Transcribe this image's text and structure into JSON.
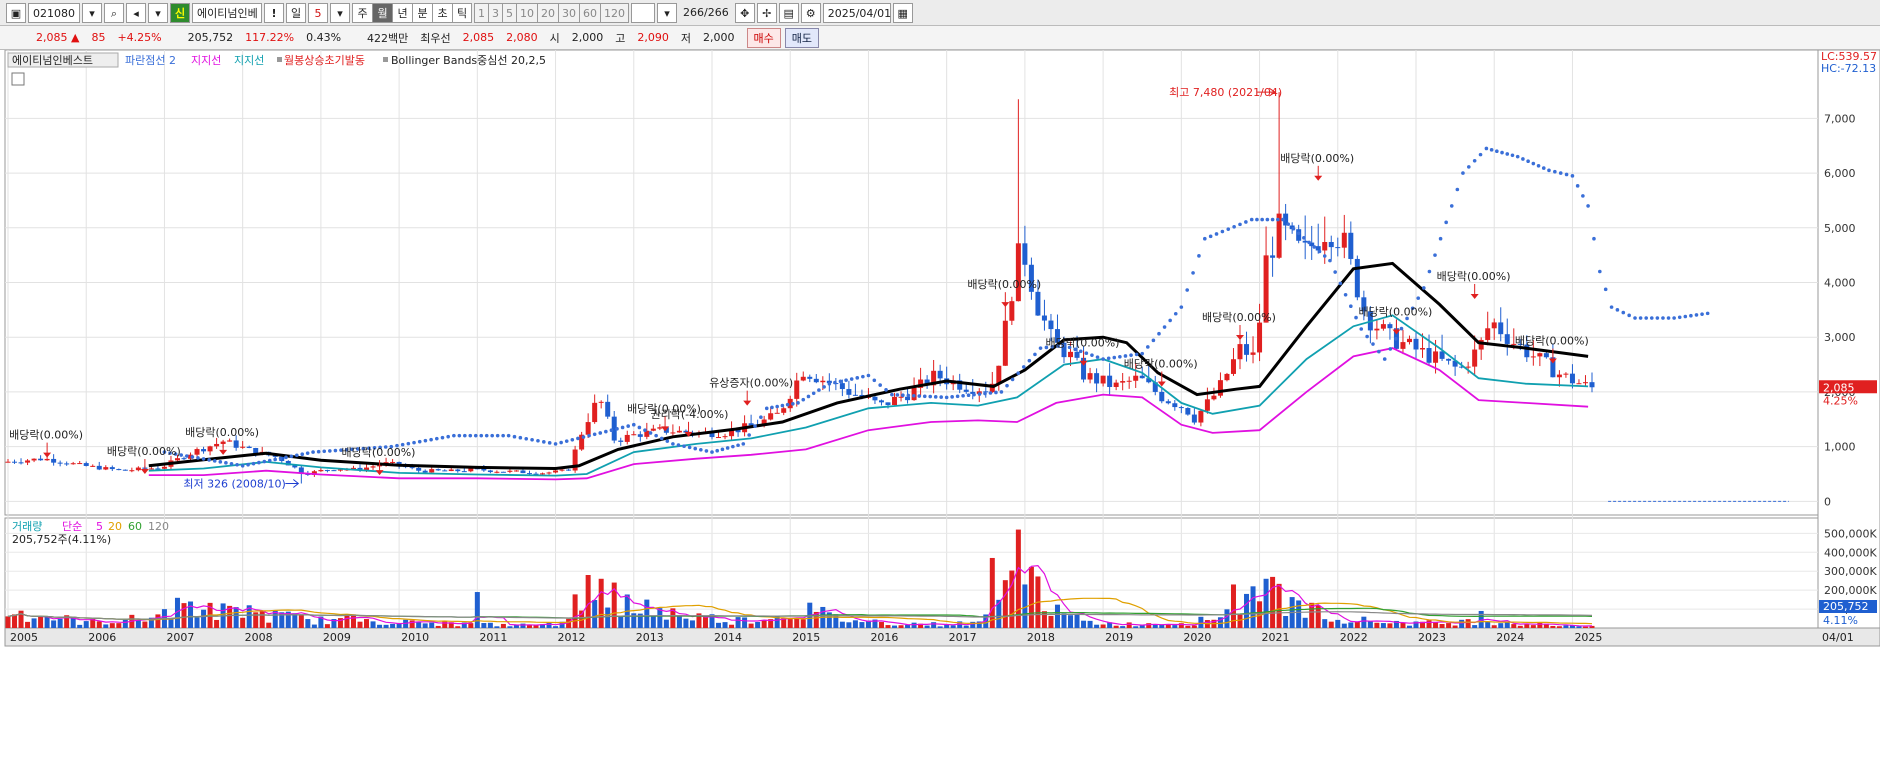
{
  "toolbar": {
    "code": "021080",
    "name_badge": "신",
    "name": "에이티넘인베",
    "alert": "!",
    "period_primary": "일",
    "period_count": "5",
    "periods": [
      "주",
      "월",
      "년",
      "분",
      "초",
      "틱"
    ],
    "active_period": "월",
    "intervals": [
      "1",
      "3",
      "5",
      "10",
      "20",
      "30",
      "60",
      "120"
    ],
    "candle_count": "266",
    "candle_total": "/266",
    "date": "2025/04/01"
  },
  "quote": {
    "price": "2,085",
    "change": "85",
    "change_pct": "+4.25%",
    "volume": "205,752",
    "vol_ratio": "117.22%",
    "turnover": "0.43%",
    "amount": "422백만",
    "best_bid_label": "최우선",
    "best_ask": "2,085",
    "best_bid": "2,080",
    "open_label": "시",
    "open": "2,000",
    "high_label": "고",
    "high": "2,090",
    "low_label": "저",
    "low": "2,000",
    "buy_label": "매수",
    "sell_label": "매도"
  },
  "chart_data": {
    "type": "candlestick",
    "legend": {
      "stock": "에이티넘인베스트",
      "psar": "파란점선 2",
      "support1": "지지선",
      "support2": "지지선",
      "signal": "월봉상승초기발동",
      "bb": "Bollinger Bands중심선 20,2,5"
    },
    "legend_colors": {
      "psar": "#3a6fd8",
      "support1": "#e010e0",
      "support2": "#10a0b0",
      "signal": "#e02020"
    },
    "corner_lc": "LC:539.57",
    "corner_hc": "HC:-72.13",
    "y_ticks": [
      "7,000",
      "6,000",
      "5,000",
      "4,000",
      "3,000",
      "2,000",
      "1,000",
      "0"
    ],
    "y_values": [
      7000,
      6000,
      5000,
      4000,
      3000,
      2000,
      1000,
      0
    ],
    "ylim": [
      -250,
      8250
    ],
    "x_labels": [
      "2005",
      "2006",
      "2007",
      "2008",
      "2009",
      "2010",
      "2011",
      "2012",
      "2013",
      "2014",
      "2015",
      "2016",
      "2017",
      "2018",
      "2019",
      "2020",
      "2021",
      "2022",
      "2023",
      "2024",
      "2025"
    ],
    "last_date": "04/01",
    "price_tag": "2,085",
    "pct_tag": "4.25%",
    "current_price": 2085,
    "high_note": "최고 7,480 (2021/04)",
    "high_value": 7480,
    "low_note": "최저 326 (2008/10)",
    "low_value": 326,
    "annotations": [
      {
        "text": "배당락(0.00%)",
        "year": 2005.5,
        "y": 1000
      },
      {
        "text": "배당락(0.00%)",
        "year": 2006.75,
        "y": 700
      },
      {
        "text": "배당락(0.00%)",
        "year": 2007.75,
        "y": 1050
      },
      {
        "text": "배당락(0.00%)",
        "year": 2009.75,
        "y": 680
      },
      {
        "text": "배당락(0.00%)",
        "year": 2013.4,
        "y": 1480
      },
      {
        "text": "권리락(-4.00%)",
        "year": 2013.7,
        "y": 1380
      },
      {
        "text": "유상증자(0.00%)",
        "year": 2014.45,
        "y": 1950
      },
      {
        "text": "배당락(0.00%)",
        "year": 2017.75,
        "y": 3750
      },
      {
        "text": "배당락(0.00%)",
        "year": 2018.75,
        "y": 2680
      },
      {
        "text": "배당락(0.00%)",
        "year": 2019.75,
        "y": 2300
      },
      {
        "text": "배당락(0.00%)",
        "year": 2020.75,
        "y": 3150
      },
      {
        "text": "배당락(0.00%)",
        "year": 2021.75,
        "y": 6060
      },
      {
        "text": "배당락(0.00%)",
        "year": 2022.75,
        "y": 3250
      },
      {
        "text": "배당락(0.00%)",
        "year": 2023.75,
        "y": 3900
      },
      {
        "text": "배당락(0.00%)",
        "year": 2024.75,
        "y": 2720
      }
    ],
    "anchors": [
      [
        2005.0,
        720
      ],
      [
        2005.5,
        780
      ],
      [
        2006.0,
        650
      ],
      [
        2006.5,
        560
      ],
      [
        2007.0,
        620
      ],
      [
        2007.4,
        900
      ],
      [
        2007.8,
        1100
      ],
      [
        2008.2,
        900
      ],
      [
        2008.5,
        800
      ],
      [
        2008.83,
        500
      ],
      [
        2009.2,
        600
      ],
      [
        2009.5,
        580
      ],
      [
        2009.9,
        700
      ],
      [
        2010.3,
        560
      ],
      [
        2010.7,
        550
      ],
      [
        2011.0,
        580
      ],
      [
        2011.5,
        540
      ],
      [
        2011.9,
        520
      ],
      [
        2012.2,
        560
      ],
      [
        2012.4,
        1350
      ],
      [
        2012.6,
        1900
      ],
      [
        2012.8,
        1100
      ],
      [
        2013.0,
        1200
      ],
      [
        2013.4,
        1300
      ],
      [
        2013.8,
        1250
      ],
      [
        2014.2,
        1250
      ],
      [
        2014.6,
        1400
      ],
      [
        2014.9,
        1600
      ],
      [
        2015.2,
        2400
      ],
      [
        2015.5,
        2200
      ],
      [
        2015.8,
        2000
      ],
      [
        2016.2,
        1750
      ],
      [
        2016.6,
        2000
      ],
      [
        2016.9,
        2300
      ],
      [
        2017.3,
        2100
      ],
      [
        2017.6,
        2050
      ],
      [
        2017.75,
        2800
      ],
      [
        2017.9,
        4100
      ],
      [
        2018.0,
        4700
      ],
      [
        2018.2,
        3600
      ],
      [
        2018.4,
        2900
      ],
      [
        2018.6,
        2700
      ],
      [
        2018.8,
        2300
      ],
      [
        2019.2,
        2100
      ],
      [
        2019.5,
        2250
      ],
      [
        2019.8,
        1900
      ],
      [
        2020.1,
        1700
      ],
      [
        2020.2,
        1500
      ],
      [
        2020.5,
        2000
      ],
      [
        2020.8,
        2800
      ],
      [
        2021.0,
        2600
      ],
      [
        2021.1,
        4300
      ],
      [
        2021.3,
        5000
      ],
      [
        2021.6,
        4500
      ],
      [
        2021.9,
        5000
      ],
      [
        2022.1,
        4800
      ],
      [
        2022.4,
        3400
      ],
      [
        2022.7,
        3000
      ],
      [
        2023.0,
        2800
      ],
      [
        2023.3,
        2600
      ],
      [
        2023.6,
        2400
      ],
      [
        2023.85,
        2800
      ],
      [
        2024.0,
        3300
      ],
      [
        2024.3,
        2900
      ],
      [
        2024.6,
        2600
      ],
      [
        2024.9,
        2300
      ],
      [
        2025.25,
        2085
      ]
    ],
    "bb_mid": [
      [
        2006.8,
        650
      ],
      [
        2007.5,
        760
      ],
      [
        2008.3,
        880
      ],
      [
        2009.0,
        750
      ],
      [
        2010.0,
        660
      ],
      [
        2011.0,
        620
      ],
      [
        2012.0,
        600
      ],
      [
        2012.3,
        650
      ],
      [
        2012.8,
        950
      ],
      [
        2013.5,
        1180
      ],
      [
        2014.3,
        1320
      ],
      [
        2014.9,
        1450
      ],
      [
        2015.6,
        1800
      ],
      [
        2016.4,
        2050
      ],
      [
        2017.0,
        2200
      ],
      [
        2017.6,
        2100
      ],
      [
        2018.0,
        2400
      ],
      [
        2018.5,
        2950
      ],
      [
        2019.0,
        3000
      ],
      [
        2019.3,
        2900
      ],
      [
        2019.7,
        2350
      ],
      [
        2020.2,
        1950
      ],
      [
        2020.7,
        2050
      ],
      [
        2021.0,
        2100
      ],
      [
        2021.6,
        3200
      ],
      [
        2022.2,
        4250
      ],
      [
        2022.7,
        4350
      ],
      [
        2023.3,
        3600
      ],
      [
        2023.8,
        2900
      ],
      [
        2024.4,
        2800
      ],
      [
        2025.2,
        2650
      ]
    ],
    "support_cyan": [
      [
        2006.8,
        560
      ],
      [
        2007.5,
        600
      ],
      [
        2008.3,
        720
      ],
      [
        2009.0,
        620
      ],
      [
        2010.0,
        520
      ],
      [
        2011.0,
        490
      ],
      [
        2012.0,
        470
      ],
      [
        2012.4,
        500
      ],
      [
        2013.0,
        900
      ],
      [
        2013.8,
        1050
      ],
      [
        2014.5,
        1150
      ],
      [
        2015.2,
        1350
      ],
      [
        2016.0,
        1700
      ],
      [
        2016.8,
        1800
      ],
      [
        2017.4,
        1750
      ],
      [
        2017.9,
        1900
      ],
      [
        2018.5,
        2500
      ],
      [
        2019.0,
        2600
      ],
      [
        2019.5,
        2350
      ],
      [
        2020.0,
        1800
      ],
      [
        2020.4,
        1600
      ],
      [
        2021.0,
        1750
      ],
      [
        2021.6,
        2600
      ],
      [
        2022.2,
        3200
      ],
      [
        2022.7,
        3400
      ],
      [
        2023.3,
        2800
      ],
      [
        2023.8,
        2250
      ],
      [
        2024.4,
        2150
      ],
      [
        2025.2,
        2100
      ]
    ],
    "support_magenta": [
      [
        2006.8,
        480
      ],
      [
        2007.5,
        480
      ],
      [
        2008.3,
        560
      ],
      [
        2009.0,
        490
      ],
      [
        2010.0,
        420
      ],
      [
        2011.0,
        420
      ],
      [
        2012.0,
        400
      ],
      [
        2012.4,
        420
      ],
      [
        2013.0,
        680
      ],
      [
        2013.8,
        780
      ],
      [
        2014.5,
        850
      ],
      [
        2015.2,
        950
      ],
      [
        2016.0,
        1300
      ],
      [
        2016.8,
        1450
      ],
      [
        2017.4,
        1480
      ],
      [
        2017.9,
        1450
      ],
      [
        2018.4,
        1800
      ],
      [
        2019.0,
        1950
      ],
      [
        2019.5,
        1900
      ],
      [
        2020.0,
        1400
      ],
      [
        2020.4,
        1250
      ],
      [
        2021.0,
        1300
      ],
      [
        2021.6,
        2000
      ],
      [
        2022.2,
        2650
      ],
      [
        2022.7,
        2800
      ],
      [
        2023.3,
        2400
      ],
      [
        2023.8,
        1850
      ],
      [
        2024.4,
        1800
      ],
      [
        2025.2,
        1730
      ]
    ],
    "psar_dots": [
      [
        2007.0,
        900
      ],
      [
        2008.0,
        650
      ],
      [
        2008.9,
        900
      ],
      [
        2009.9,
        1000
      ],
      [
        2010.7,
        1200
      ],
      [
        2011.4,
        1200
      ],
      [
        2012.0,
        1050
      ],
      [
        2013.0,
        1400
      ],
      [
        2013.5,
        1050
      ],
      [
        2014.0,
        900
      ],
      [
        2014.4,
        1050
      ],
      [
        2014.7,
        1700
      ],
      [
        2015.1,
        1800
      ],
      [
        2015.5,
        2150
      ],
      [
        2016.0,
        2300
      ],
      [
        2016.3,
        1950
      ],
      [
        2017.0,
        1900
      ],
      [
        2017.7,
        2000
      ],
      [
        2018.2,
        2800
      ],
      [
        2018.5,
        2850
      ],
      [
        2019.0,
        2600
      ],
      [
        2019.5,
        2700
      ],
      [
        2020.0,
        3550
      ],
      [
        2020.3,
        4800
      ],
      [
        2020.9,
        5150
      ],
      [
        2021.3,
        5150
      ],
      [
        2021.5,
        4900
      ],
      [
        2021.9,
        4400
      ],
      [
        2022.3,
        3150
      ],
      [
        2022.6,
        2600
      ],
      [
        2023.1,
        3900
      ],
      [
        2023.6,
        6000
      ],
      [
        2023.9,
        6450
      ],
      [
        2024.3,
        6300
      ],
      [
        2024.7,
        6050
      ],
      [
        2025.0,
        5950
      ],
      [
        2025.2,
        5400
      ],
      [
        2025.35,
        4200
      ],
      [
        2025.5,
        3550
      ],
      [
        2025.8,
        3350
      ],
      [
        2026.3,
        3350
      ],
      [
        2026.8,
        3450
      ]
    ],
    "forecast_line": {
      "from": 2025.2,
      "to": 2027.0,
      "y": 0
    },
    "volume": {
      "label": "거래량",
      "ma_label": "단순",
      "ma_periods": [
        "5",
        "20",
        "60",
        "120"
      ],
      "ma_colors": [
        "#e010e0",
        "#e0a000",
        "#30a030",
        "#888888"
      ],
      "current_text": "205,752주(4.11%)",
      "y_ticks": [
        "500,000K",
        "400,000K",
        "300,000K",
        "200,000K",
        "100,000K"
      ],
      "y_values": [
        500000,
        400000,
        300000,
        200000,
        100000
      ],
      "ylim": [
        0,
        560000
      ],
      "tag": "205,752",
      "tag_pct": "4.11%",
      "anchors": [
        [
          2005.0,
          90000
        ],
        [
          2005.5,
          60000
        ],
        [
          2006.0,
          30000
        ],
        [
          2006.8,
          50000
        ],
        [
          2007.2,
          120000
        ],
        [
          2007.6,
          90000
        ],
        [
          2008.0,
          80000
        ],
        [
          2008.5,
          60000
        ],
        [
          2009.0,
          40000
        ],
        [
          2009.5,
          50000
        ],
        [
          2010.0,
          30000
        ],
        [
          2010.5,
          25000
        ],
        [
          2011.0,
          20000
        ],
        [
          2011.5,
          15000
        ],
        [
          2012.0,
          20000
        ],
        [
          2012.3,
          150000
        ],
        [
          2012.6,
          230000
        ],
        [
          2012.9,
          120000
        ],
        [
          2013.3,
          90000
        ],
        [
          2013.8,
          60000
        ],
        [
          2014.3,
          40000
        ],
        [
          2014.8,
          60000
        ],
        [
          2015.2,
          100000
        ],
        [
          2015.6,
          50000
        ],
        [
          2016.2,
          30000
        ],
        [
          2016.8,
          20000
        ],
        [
          2017.4,
          25000
        ],
        [
          2017.7,
          120000
        ],
        [
          2017.9,
          330000
        ],
        [
          2018.1,
          250000
        ],
        [
          2018.4,
          80000
        ],
        [
          2018.8,
          30000
        ],
        [
          2019.3,
          20000
        ],
        [
          2019.8,
          25000
        ],
        [
          2020.2,
          30000
        ],
        [
          2020.6,
          90000
        ],
        [
          2020.9,
          200000
        ],
        [
          2021.1,
          240000
        ],
        [
          2021.4,
          120000
        ],
        [
          2021.8,
          80000
        ],
        [
          2022.3,
          40000
        ],
        [
          2022.8,
          30000
        ],
        [
          2023.3,
          25000
        ],
        [
          2023.9,
          40000
        ],
        [
          2024.3,
          25000
        ],
        [
          2024.8,
          15000
        ],
        [
          2025.25,
          12000
        ]
      ],
      "spikes": [
        [
          2011.0,
          190000
        ],
        [
          2012.55,
          260000
        ],
        [
          2012.75,
          240000
        ],
        [
          2017.6,
          370000
        ],
        [
          2017.88,
          520000
        ],
        [
          2018.0,
          230000
        ],
        [
          2020.7,
          230000
        ],
        [
          2020.85,
          180000
        ],
        [
          2021.05,
          260000
        ],
        [
          2021.2,
          270000
        ],
        [
          2023.85,
          90000
        ],
        [
          2007.3,
          140000
        ],
        [
          2008.1,
          120000
        ],
        [
          2012.4,
          280000
        ],
        [
          2013.2,
          150000
        ]
      ]
    }
  }
}
